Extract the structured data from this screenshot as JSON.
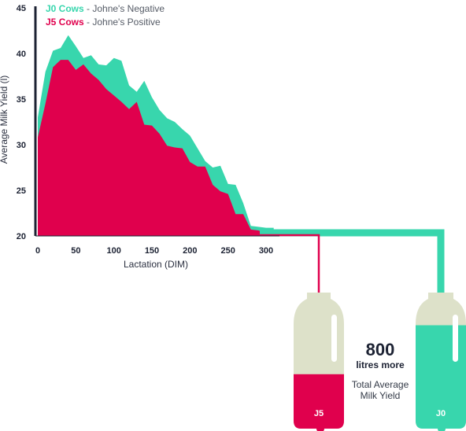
{
  "chart_data": {
    "type": "area",
    "xlabel": "Lactation (DIM)",
    "ylabel": "Average Milk Yield (l)",
    "xlim": [
      0,
      310
    ],
    "ylim": [
      20,
      45
    ],
    "x_ticks": [
      0,
      50,
      100,
      150,
      200,
      250,
      300
    ],
    "y_ticks": [
      20,
      25,
      30,
      35,
      40,
      45
    ],
    "series": [
      {
        "name_bold": "J0 Cows",
        "name_rest": " - Johne's Negative",
        "color": "#38d6ad",
        "x": [
          0,
          10,
          20,
          30,
          40,
          50,
          60,
          70,
          80,
          90,
          100,
          110,
          120,
          130,
          140,
          150,
          160,
          170,
          180,
          190,
          200,
          210,
          220,
          230,
          240,
          250,
          260,
          270,
          280,
          290,
          300,
          310
        ],
        "y": [
          33,
          38,
          40.3,
          40.6,
          42,
          40.8,
          39.5,
          39.8,
          38.8,
          38.7,
          39.5,
          39.2,
          36.5,
          35.8,
          37,
          35.2,
          33.8,
          32.9,
          32.5,
          31.7,
          31,
          29.6,
          28.2,
          27.5,
          27.7,
          25.7,
          25.6,
          23.6,
          21.1,
          21,
          20.9,
          20.9
        ]
      },
      {
        "name_bold": "J5 Cows",
        "name_rest": " - Johne's Positive",
        "color": "#e0004d",
        "x": [
          0,
          10,
          20,
          30,
          40,
          50,
          60,
          70,
          80,
          90,
          100,
          110,
          120,
          130,
          140,
          150,
          160,
          170,
          180,
          190,
          200,
          210,
          220,
          230,
          240,
          250,
          260,
          270,
          280,
          290,
          300,
          310
        ],
        "y": [
          30.8,
          34.5,
          38.5,
          39.3,
          39.3,
          38.2,
          38.8,
          37.8,
          37.1,
          36.1,
          35.4,
          34.7,
          33.9,
          34.7,
          32.2,
          32.1,
          31.2,
          29.9,
          29.7,
          29.6,
          28.1,
          27.6,
          27.6,
          25.6,
          24.9,
          24.6,
          22.4,
          22.4,
          20.7,
          20.6,
          20.3,
          20.2
        ]
      }
    ]
  },
  "comparison": {
    "difference_value": "800",
    "difference_text": "litres more",
    "caption_line1": "Total Average",
    "caption_line2": "Milk Yield",
    "bottles": [
      {
        "label": "J5",
        "color": "#e0004d",
        "fill_fraction": 0.4
      },
      {
        "label": "J0",
        "color": "#38d6ad",
        "fill_fraction": 0.76
      }
    ]
  },
  "colors": {
    "axis": "#1c2233",
    "bottle_empty": "#dde1c9"
  }
}
